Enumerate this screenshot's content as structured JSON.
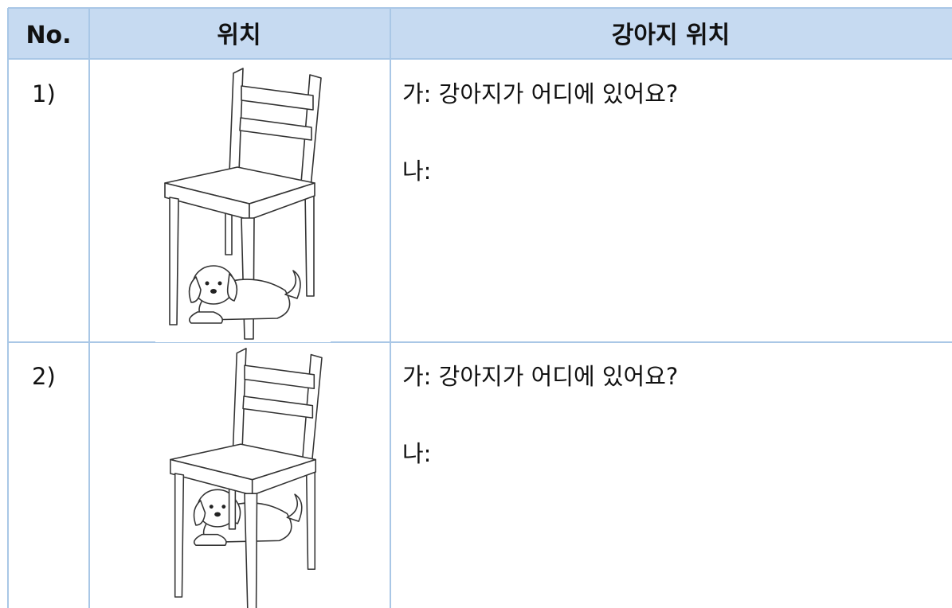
{
  "table": {
    "header": [
      "No.",
      "위치",
      "강아지 위치"
    ],
    "rows": [
      {
        "no": "1)",
        "lines": [
          "가: 강아지가 어디에 있어요?",
          "나:"
        ]
      },
      {
        "no": "2)",
        "lines": [
          "가: 강아지가 어디에 있어요?",
          "나:"
        ]
      }
    ]
  }
}
